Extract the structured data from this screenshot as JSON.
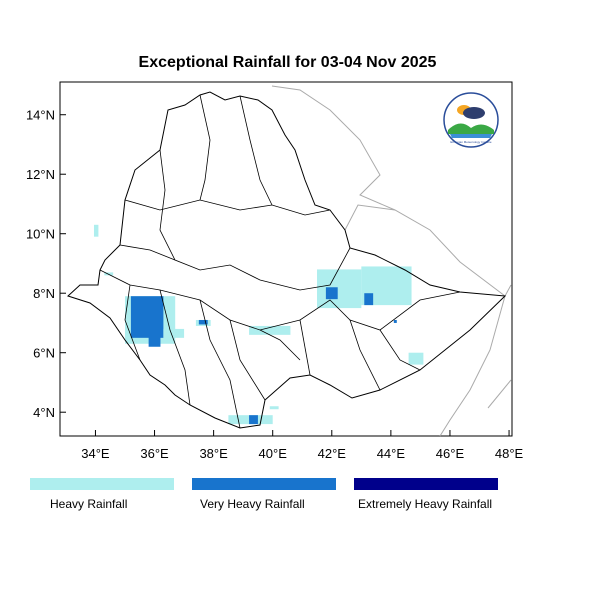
{
  "title": "Exceptional Rainfall for 03-04 Nov 2025",
  "map": {
    "lon_range": [
      32.8,
      48.1
    ],
    "lat_range": [
      3.2,
      15.1
    ],
    "lon_ticks": [
      {
        "v": 34,
        "label": "34°E"
      },
      {
        "v": 36,
        "label": "36°E"
      },
      {
        "v": 38,
        "label": "38°E"
      },
      {
        "v": 40,
        "label": "40°E"
      },
      {
        "v": 42,
        "label": "42°E"
      },
      {
        "v": 44,
        "label": "44°E"
      },
      {
        "v": 46,
        "label": "46°E"
      },
      {
        "v": 48,
        "label": "48°E"
      }
    ],
    "lat_ticks": [
      {
        "v": 4,
        "label": "4°N"
      },
      {
        "v": 6,
        "label": "6°N"
      },
      {
        "v": 8,
        "label": "8°N"
      },
      {
        "v": 10,
        "label": "10°N"
      },
      {
        "v": 12,
        "label": "12°N"
      },
      {
        "v": 14,
        "label": "14°N"
      }
    ],
    "rain_cells": [
      {
        "lon": [
          33.95,
          34.1
        ],
        "lat": [
          9.9,
          10.3
        ],
        "class": 0
      },
      {
        "lon": [
          34.3,
          34.6
        ],
        "lat": [
          8.6,
          8.7
        ],
        "class": 0
      },
      {
        "lon": [
          35.0,
          36.7
        ],
        "lat": [
          6.3,
          7.9
        ],
        "class": 0
      },
      {
        "lon": [
          35.2,
          36.3
        ],
        "lat": [
          6.5,
          7.9
        ],
        "class": 1
      },
      {
        "lon": [
          35.8,
          36.2
        ],
        "lat": [
          6.2,
          6.8
        ],
        "class": 1
      },
      {
        "lon": [
          36.3,
          37.0
        ],
        "lat": [
          6.5,
          6.8
        ],
        "class": 0
      },
      {
        "lon": [
          37.4,
          37.9
        ],
        "lat": [
          6.9,
          7.1
        ],
        "class": 0
      },
      {
        "lon": [
          37.5,
          37.8
        ],
        "lat": [
          6.95,
          7.1
        ],
        "class": 1
      },
      {
        "lon": [
          39.2,
          40.6
        ],
        "lat": [
          6.6,
          6.9
        ],
        "class": 0
      },
      {
        "lon": [
          41.5,
          43.0
        ],
        "lat": [
          7.5,
          8.8
        ],
        "class": 0
      },
      {
        "lon": [
          41.8,
          42.2
        ],
        "lat": [
          7.8,
          8.2
        ],
        "class": 1
      },
      {
        "lon": [
          43.0,
          44.7
        ],
        "lat": [
          7.6,
          8.9
        ],
        "class": 0
      },
      {
        "lon": [
          43.1,
          43.4
        ],
        "lat": [
          7.6,
          8.0
        ],
        "class": 1
      },
      {
        "lon": [
          44.1,
          44.2
        ],
        "lat": [
          7.0,
          7.1
        ],
        "class": 1
      },
      {
        "lon": [
          44.6,
          45.1
        ],
        "lat": [
          5.6,
          6.0
        ],
        "class": 0
      },
      {
        "lon": [
          38.5,
          40.0
        ],
        "lat": [
          3.6,
          3.9
        ],
        "class": 0
      },
      {
        "lon": [
          39.2,
          39.5
        ],
        "lat": [
          3.6,
          3.9
        ],
        "class": 1
      },
      {
        "lon": [
          39.9,
          40.2
        ],
        "lat": [
          4.1,
          4.2
        ],
        "class": 0
      }
    ]
  },
  "legend": [
    {
      "label": "Heavy Rainfall",
      "color": "#aeeeee"
    },
    {
      "label": "Very Heavy Rainfall",
      "color": "#1874cd"
    },
    {
      "label": "Extremely Heavy Rainfall",
      "color": "#00008b"
    }
  ],
  "logo": {
    "text": "Ethiopian Meteorology Institute"
  }
}
